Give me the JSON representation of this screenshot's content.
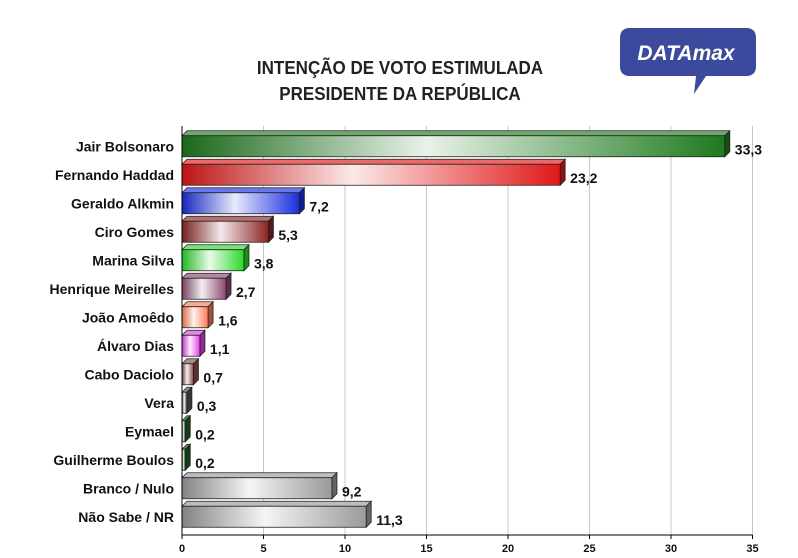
{
  "chart_data": {
    "type": "bar",
    "orientation": "horizontal",
    "title": "INTENÇÃO DE VOTO ESTIMULADA",
    "subtitle": "PRESIDENTE DA REPÚBLICA",
    "categories": [
      "Jair Bolsonaro",
      "Fernando Haddad",
      "Geraldo Alkmin",
      "Ciro Gomes",
      "Marina Silva",
      "Henrique Meirelles",
      "João Amoêdo",
      "Álvaro Dias",
      "Cabo Daciolo",
      "Vera",
      "Eymael",
      "Guilherme Boulos",
      "Branco / Nulo",
      "Não Sabe / NR"
    ],
    "values": [
      33.3,
      23.2,
      7.2,
      5.3,
      3.8,
      2.7,
      1.6,
      1.1,
      0.7,
      0.3,
      0.2,
      0.2,
      9.2,
      11.3
    ],
    "value_labels": [
      "33,3",
      "23,2",
      "7,2",
      "5,3",
      "3,8",
      "2,7",
      "1,6",
      "1,1",
      "0,7",
      "0,3",
      "0,2",
      "0,2",
      "9,2",
      "11,3"
    ],
    "colors": [
      "#1e7a1e",
      "#e01818",
      "#1a2ee0",
      "#8a2424",
      "#28d828",
      "#8a4a6e",
      "#ff7a55",
      "#e040e8",
      "#8a4a4a",
      "#555555",
      "#1e5a1e",
      "#1e5a1e",
      "#9a9a9a",
      "#9a9a9a"
    ],
    "xlim": [
      0,
      35
    ],
    "xticks": [
      "0",
      "5",
      "10",
      "15",
      "20",
      "25",
      "30",
      "35"
    ],
    "grid": "vertical",
    "legend": "none"
  },
  "logo": {
    "text": "DATAmax",
    "color": "#3b4a9c"
  }
}
